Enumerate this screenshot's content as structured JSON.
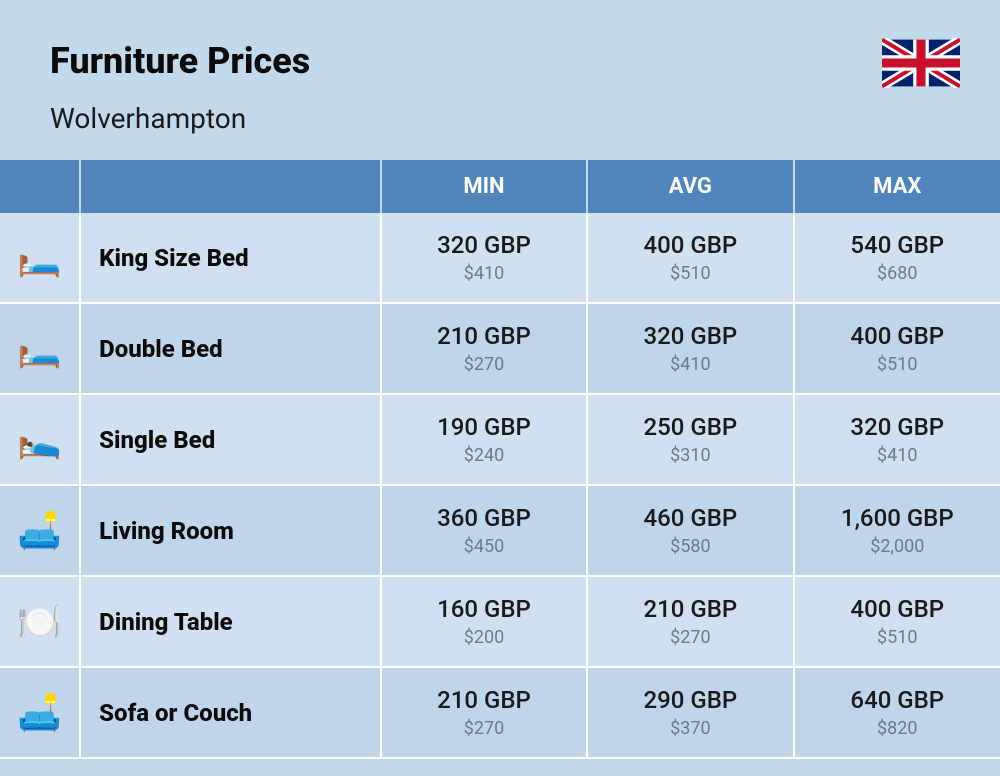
{
  "header": {
    "title": "Furniture Prices",
    "subtitle": "Wolverhampton"
  },
  "columns": {
    "min": "MIN",
    "avg": "AVG",
    "max": "MAX"
  },
  "rows": [
    {
      "icon": "🛏️",
      "label": "King Size Bed",
      "min_gbp": "320 GBP",
      "min_usd": "$410",
      "avg_gbp": "400 GBP",
      "avg_usd": "$510",
      "max_gbp": "540 GBP",
      "max_usd": "$680"
    },
    {
      "icon": "🛏️",
      "label": "Double Bed",
      "min_gbp": "210 GBP",
      "min_usd": "$270",
      "avg_gbp": "320 GBP",
      "avg_usd": "$410",
      "max_gbp": "400 GBP",
      "max_usd": "$510"
    },
    {
      "icon": "🛌",
      "label": "Single Bed",
      "min_gbp": "190 GBP",
      "min_usd": "$240",
      "avg_gbp": "250 GBP",
      "avg_usd": "$310",
      "max_gbp": "320 GBP",
      "max_usd": "$410"
    },
    {
      "icon": "🛋️",
      "label": "Living Room",
      "min_gbp": "360 GBP",
      "min_usd": "$450",
      "avg_gbp": "460 GBP",
      "avg_usd": "$580",
      "max_gbp": "1,600 GBP",
      "max_usd": "$2,000"
    },
    {
      "icon": "🍽️",
      "label": "Dining Table",
      "min_gbp": "160 GBP",
      "min_usd": "$200",
      "avg_gbp": "210 GBP",
      "avg_usd": "$270",
      "max_gbp": "400 GBP",
      "max_usd": "$510"
    },
    {
      "icon": "🛋️",
      "label": "Sofa or Couch",
      "min_gbp": "210 GBP",
      "min_usd": "$270",
      "avg_gbp": "290 GBP",
      "avg_usd": "$370",
      "max_gbp": "640 GBP",
      "max_usd": "$820"
    }
  ],
  "styling": {
    "page_bg": "#c2d9ec",
    "header_bg": "#4f85ba",
    "header_text": "#ffffff",
    "row_odd_bg": "#cfe0f0",
    "row_even_bg": "#bfd5ea",
    "title_fontsize": 36,
    "subtitle_fontsize": 28,
    "label_fontsize": 24,
    "gbp_fontsize": 24,
    "usd_fontsize": 18,
    "usd_color": "#6b7b8c",
    "border_color": "#ffffff"
  }
}
